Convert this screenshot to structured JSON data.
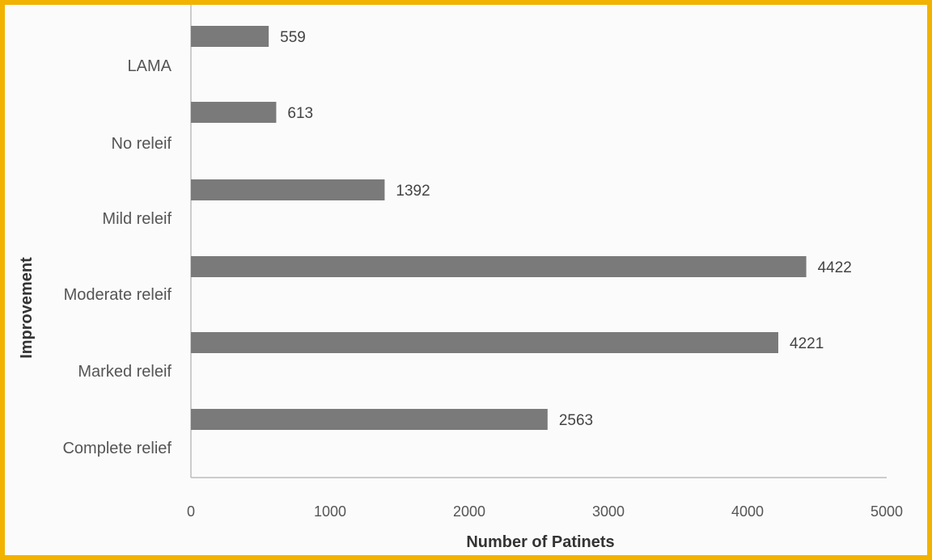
{
  "chart_data": {
    "type": "bar",
    "orientation": "horizontal",
    "categories": [
      "LAMA",
      "No releif",
      "Mild releif",
      "Moderate releif",
      "Marked releif",
      "Complete relief"
    ],
    "values": [
      559,
      613,
      1392,
      4422,
      4221,
      2563
    ],
    "data_labels": [
      "559",
      "613",
      "1392",
      "4422",
      "4221",
      "2563"
    ],
    "title": "",
    "xlabel": "Number of Patinets",
    "ylabel": "Improvement",
    "xlim": [
      0,
      5000
    ],
    "x_ticks": [
      "0",
      "1000",
      "2000",
      "3000",
      "4000",
      "5000"
    ],
    "grid": false,
    "legend": "none",
    "bar_color": "#7a7a7a",
    "frame_color": "#f2b200"
  }
}
